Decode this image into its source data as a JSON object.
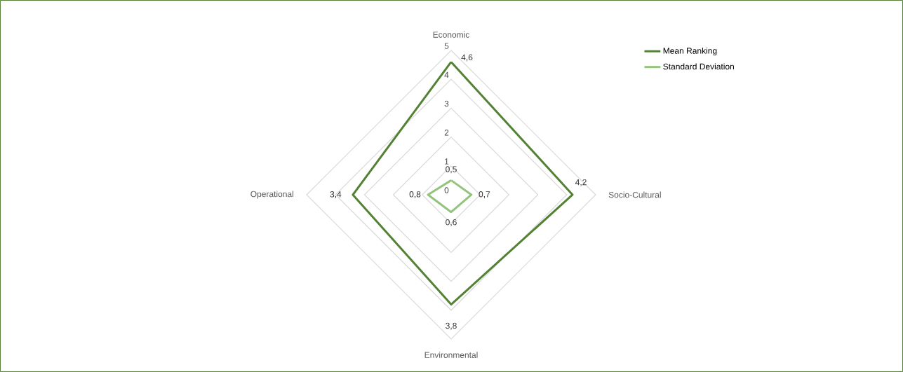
{
  "chart_data": {
    "type": "radar",
    "categories": [
      "Economic",
      "Socio-Cultural",
      "Environmental",
      "Operational"
    ],
    "series": [
      {
        "name": "Mean Ranking",
        "color": "#548235",
        "values": [
          4.6,
          4.2,
          3.8,
          3.4
        ],
        "value_labels": [
          "4,6",
          "4,2",
          "3,8",
          "3,4"
        ]
      },
      {
        "name": "Standard Deviation",
        "color": "#93c47d",
        "values": [
          0.5,
          0.7,
          0.6,
          0.8
        ],
        "value_labels": [
          "0,5",
          "0,7",
          "0,6",
          "0,8"
        ]
      }
    ],
    "ylim": [
      0,
      5
    ],
    "yticks": [
      0,
      1,
      2,
      3,
      4,
      5
    ],
    "grid": true,
    "legend": "top right"
  }
}
